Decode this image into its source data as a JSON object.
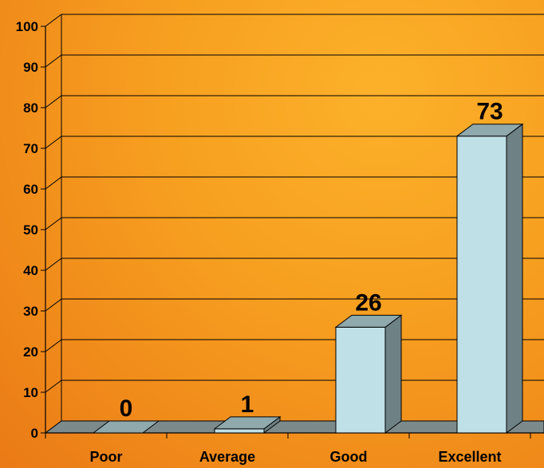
{
  "chart_data": {
    "type": "bar",
    "categories": [
      "Poor",
      "Average",
      "Good",
      "Excellent"
    ],
    "values": [
      0,
      1,
      26,
      73
    ],
    "data_labels": [
      "0",
      "1",
      "26",
      "73"
    ],
    "ylim": [
      0,
      100
    ],
    "yticks": [
      0,
      10,
      20,
      30,
      40,
      50,
      60,
      70,
      80,
      90,
      100
    ],
    "grid": true,
    "legend": "none",
    "three_d": true,
    "colors": {
      "bar_front": "#bfe0e6",
      "bar_top": "#8fa9ad",
      "bar_side": "#6e8286",
      "floor": "#7c8a8c",
      "grid": "#000000"
    }
  }
}
